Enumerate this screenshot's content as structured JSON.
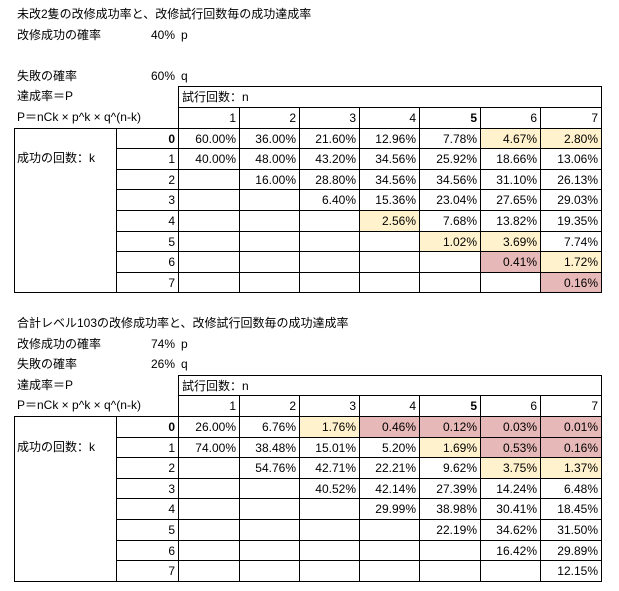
{
  "sections": [
    {
      "title": "未改2隻の改修成功率と、改修試行回数毎の成功達成率",
      "success_label": "改修成功の確率",
      "success_rate": "40%",
      "success_symbol": "p",
      "failure_label": "失敗の確率",
      "failure_rate": "60%",
      "failure_symbol": "q",
      "achieve_label": "達成率＝P",
      "trials_label": "試行回数：n",
      "formula": "P＝nCk × p^k × q^(n-k)",
      "k_label": "成功の回数：k",
      "n_headers": [
        "1",
        "2",
        "3",
        "4",
        "5",
        "6",
        "7"
      ],
      "k_values": [
        "0",
        "1",
        "2",
        "3",
        "4",
        "5",
        "6",
        "7"
      ],
      "rows": [
        [
          "60.00%",
          "36.00%",
          "21.60%",
          "12.96%",
          "7.78%",
          "4.67%",
          "2.80%"
        ],
        [
          "40.00%",
          "48.00%",
          "43.20%",
          "34.56%",
          "25.92%",
          "18.66%",
          "13.06%"
        ],
        [
          null,
          "16.00%",
          "28.80%",
          "34.56%",
          "34.56%",
          "31.10%",
          "26.13%"
        ],
        [
          null,
          null,
          "6.40%",
          "15.36%",
          "23.04%",
          "27.65%",
          "29.03%"
        ],
        [
          null,
          null,
          null,
          "2.56%",
          "7.68%",
          "13.82%",
          "19.35%"
        ],
        [
          null,
          null,
          null,
          null,
          "1.02%",
          "3.69%",
          "7.74%"
        ],
        [
          null,
          null,
          null,
          null,
          null,
          "0.41%",
          "1.72%"
        ],
        [
          null,
          null,
          null,
          null,
          null,
          null,
          "0.16%"
        ]
      ]
    },
    {
      "title": "合計レベル103の改修成功率と、改修試行回数毎の成功達成率",
      "success_label": "改修成功の確率",
      "success_rate": "74%",
      "success_symbol": "p",
      "failure_label": "失敗の確率",
      "failure_rate": "26%",
      "failure_symbol": "q",
      "achieve_label": "達成率＝P",
      "trials_label": "試行回数：n",
      "formula": "P＝nCk × p^k × q^(n-k)",
      "k_label": "成功の回数：k",
      "n_headers": [
        "1",
        "2",
        "3",
        "4",
        "5",
        "6",
        "7"
      ],
      "k_values": [
        "0",
        "1",
        "2",
        "3",
        "4",
        "5",
        "6",
        "7"
      ],
      "rows": [
        [
          "26.00%",
          "6.76%",
          "1.76%",
          "0.46%",
          "0.12%",
          "0.03%",
          "0.01%"
        ],
        [
          "74.00%",
          "38.48%",
          "15.01%",
          "5.20%",
          "1.69%",
          "0.53%",
          "0.16%"
        ],
        [
          null,
          "54.76%",
          "42.71%",
          "22.21%",
          "9.62%",
          "3.75%",
          "1.37%"
        ],
        [
          null,
          null,
          "40.52%",
          "42.14%",
          "27.39%",
          "14.24%",
          "6.48%"
        ],
        [
          null,
          null,
          null,
          "29.99%",
          "38.98%",
          "30.41%",
          "18.45%"
        ],
        [
          null,
          null,
          null,
          null,
          "22.19%",
          "34.62%",
          "31.50%"
        ],
        [
          null,
          null,
          null,
          null,
          null,
          "16.42%",
          "29.89%"
        ],
        [
          null,
          null,
          null,
          null,
          null,
          null,
          "12.15%"
        ]
      ]
    }
  ]
}
